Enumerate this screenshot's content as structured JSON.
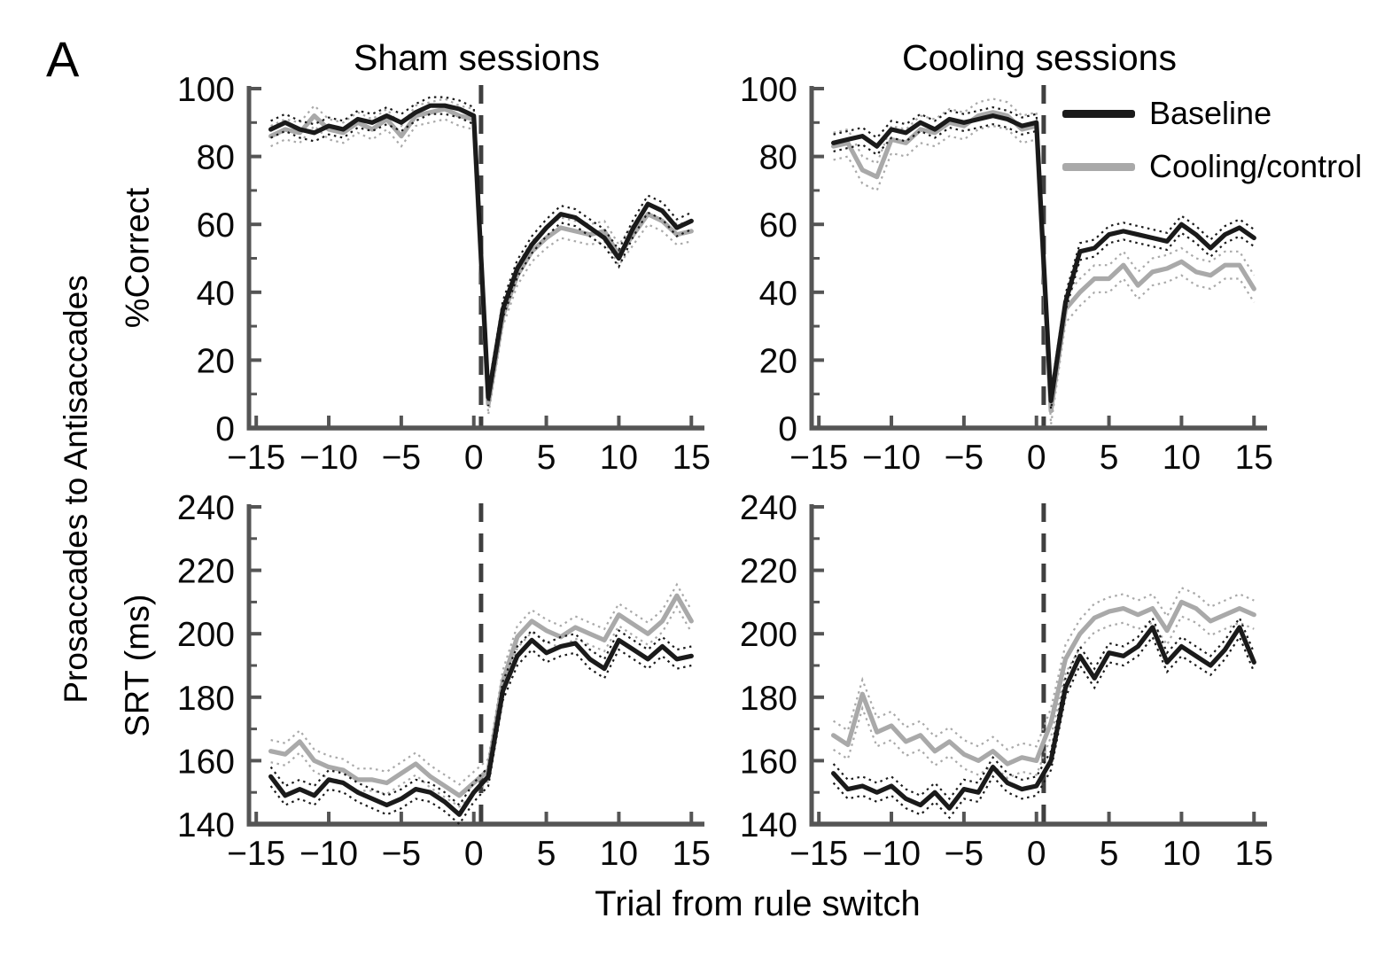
{
  "figure": {
    "panel_label": "A",
    "outer_ylabel": "Prosaccades to Antisaccades",
    "xlabel": "Trial from rule switch",
    "colors": {
      "baseline": "#1a1a1a",
      "cooling": "#a9a9a9",
      "axis": "#555555",
      "rule_line": "#3f3f3f"
    },
    "legend": [
      {
        "label": "Baseline",
        "color": "#1a1a1a"
      },
      {
        "label": "Cooling/control",
        "color": "#a9a9a9"
      }
    ]
  },
  "chart_data": [
    {
      "id": "sham-percent-correct",
      "type": "line",
      "title": "Sham sessions",
      "ylabel": "%Correct",
      "xlabel": "Trial from rule switch",
      "xlim": [
        -15.5,
        15.9
      ],
      "ylim": [
        0,
        100
      ],
      "xticks": [
        -15,
        -10,
        -5,
        0,
        5,
        10,
        15
      ],
      "yticks": [
        0,
        20,
        40,
        60,
        80,
        100
      ],
      "ytick_minor": [
        10,
        30,
        50,
        70,
        90
      ],
      "grid": false,
      "rule_switch_x": 0.5,
      "x": [
        -14,
        -13,
        -12,
        -11,
        -10,
        -9,
        -8,
        -7,
        -6,
        -5,
        -4,
        -3,
        -2,
        -1,
        0,
        1,
        2,
        3,
        4,
        5,
        6,
        7,
        8,
        9,
        10,
        11,
        12,
        13,
        14,
        15
      ],
      "series": [
        {
          "name": "Baseline",
          "color": "#1a1a1a",
          "sem": 2.5,
          "values": [
            88,
            90,
            88,
            87,
            89,
            88,
            91,
            90,
            92,
            90,
            93,
            95,
            95,
            94,
            92,
            9,
            35,
            47,
            54,
            59,
            63,
            62,
            59,
            56,
            50,
            59,
            66,
            64,
            59,
            61
          ]
        },
        {
          "name": "Cooling/control",
          "color": "#a9a9a9",
          "sem": 3,
          "values": [
            86,
            88,
            87,
            92,
            88,
            87,
            90,
            88,
            91,
            86,
            92,
            93,
            94,
            92,
            91,
            7,
            33,
            45,
            52,
            56,
            59,
            58,
            57,
            58,
            51,
            57,
            63,
            61,
            57,
            58
          ]
        }
      ]
    },
    {
      "id": "cooling-percent-correct",
      "type": "line",
      "title": "Cooling sessions",
      "ylabel": "%Correct",
      "xlabel": "Trial from rule switch",
      "xlim": [
        -15.5,
        15.9
      ],
      "ylim": [
        0,
        100
      ],
      "xticks": [
        -15,
        -10,
        -5,
        0,
        5,
        10,
        15
      ],
      "yticks": [
        0,
        20,
        40,
        60,
        80,
        100
      ],
      "ytick_minor": [
        10,
        30,
        50,
        70,
        90
      ],
      "grid": false,
      "rule_switch_x": 0.5,
      "x": [
        -14,
        -13,
        -12,
        -11,
        -10,
        -9,
        -8,
        -7,
        -6,
        -5,
        -4,
        -3,
        -2,
        -1,
        0,
        1,
        2,
        3,
        4,
        5,
        6,
        7,
        8,
        9,
        10,
        11,
        12,
        13,
        14,
        15
      ],
      "series": [
        {
          "name": "Baseline",
          "color": "#1a1a1a",
          "sem": 2.5,
          "values": [
            84,
            85,
            86,
            83,
            88,
            87,
            90,
            88,
            91,
            90,
            91,
            92,
            91,
            89,
            90,
            8,
            37,
            52,
            53,
            57,
            58,
            57,
            56,
            55,
            60,
            57,
            53,
            57,
            59,
            56
          ]
        },
        {
          "name": "Cooling/control",
          "color": "#a9a9a9",
          "sem": 4,
          "values": [
            83,
            84,
            76,
            74,
            85,
            84,
            88,
            87,
            90,
            89,
            92,
            93,
            92,
            88,
            89,
            5,
            35,
            40,
            44,
            44,
            48,
            42,
            46,
            47,
            49,
            46,
            45,
            48,
            48,
            41
          ]
        }
      ]
    },
    {
      "id": "sham-srt",
      "type": "line",
      "title": "",
      "ylabel": "SRT (ms)",
      "xlabel": "Trial from rule switch",
      "xlim": [
        -15.5,
        15.9
      ],
      "ylim": [
        140,
        240
      ],
      "xticks": [
        -15,
        -10,
        -5,
        0,
        5,
        10,
        15
      ],
      "yticks": [
        140,
        160,
        180,
        200,
        220,
        240
      ],
      "ytick_minor": [
        150,
        170,
        190,
        210,
        230
      ],
      "grid": false,
      "rule_switch_x": 0.5,
      "x": [
        -14,
        -13,
        -12,
        -11,
        -10,
        -9,
        -8,
        -7,
        -6,
        -5,
        -4,
        -3,
        -2,
        -1,
        0,
        1,
        2,
        3,
        4,
        5,
        6,
        7,
        8,
        9,
        10,
        11,
        12,
        13,
        14,
        15
      ],
      "series": [
        {
          "name": "Baseline",
          "color": "#1a1a1a",
          "sem": 3,
          "values": [
            155,
            149,
            151,
            149,
            154,
            153,
            150,
            148,
            146,
            148,
            151,
            150,
            147,
            143,
            150,
            155,
            182,
            193,
            198,
            194,
            196,
            197,
            192,
            189,
            198,
            195,
            192,
            196,
            192,
            193
          ]
        },
        {
          "name": "Cooling/control",
          "color": "#a9a9a9",
          "sem": 3.5,
          "values": [
            163,
            162,
            166,
            160,
            158,
            157,
            154,
            154,
            153,
            156,
            159,
            155,
            152,
            149,
            153,
            157,
            185,
            199,
            204,
            201,
            199,
            202,
            200,
            198,
            206,
            203,
            200,
            204,
            212,
            204
          ]
        }
      ]
    },
    {
      "id": "cooling-srt",
      "type": "line",
      "title": "",
      "ylabel": "SRT (ms)",
      "xlabel": "Trial from rule switch",
      "xlim": [
        -15.5,
        15.9
      ],
      "ylim": [
        140,
        240
      ],
      "xticks": [
        -15,
        -10,
        -5,
        0,
        5,
        10,
        15
      ],
      "yticks": [
        140,
        160,
        180,
        200,
        220,
        240
      ],
      "ytick_minor": [
        150,
        170,
        190,
        210,
        230
      ],
      "grid": false,
      "rule_switch_x": 0.5,
      "x": [
        -14,
        -13,
        -12,
        -11,
        -10,
        -9,
        -8,
        -7,
        -6,
        -5,
        -4,
        -3,
        -2,
        -1,
        0,
        1,
        2,
        3,
        4,
        5,
        6,
        7,
        8,
        9,
        10,
        11,
        12,
        13,
        14,
        15
      ],
      "series": [
        {
          "name": "Baseline",
          "color": "#1a1a1a",
          "sem": 3,
          "values": [
            156,
            151,
            152,
            150,
            152,
            148,
            146,
            150,
            145,
            151,
            150,
            158,
            153,
            151,
            152,
            160,
            183,
            193,
            186,
            194,
            193,
            196,
            202,
            191,
            196,
            193,
            190,
            195,
            202,
            191
          ]
        },
        {
          "name": "Cooling/control",
          "color": "#a9a9a9",
          "sem": 4.5,
          "values": [
            168,
            165,
            181,
            169,
            171,
            166,
            168,
            163,
            166,
            162,
            160,
            163,
            159,
            161,
            160,
            172,
            192,
            200,
            205,
            207,
            208,
            206,
            208,
            201,
            210,
            208,
            204,
            206,
            208,
            206
          ]
        }
      ]
    }
  ]
}
